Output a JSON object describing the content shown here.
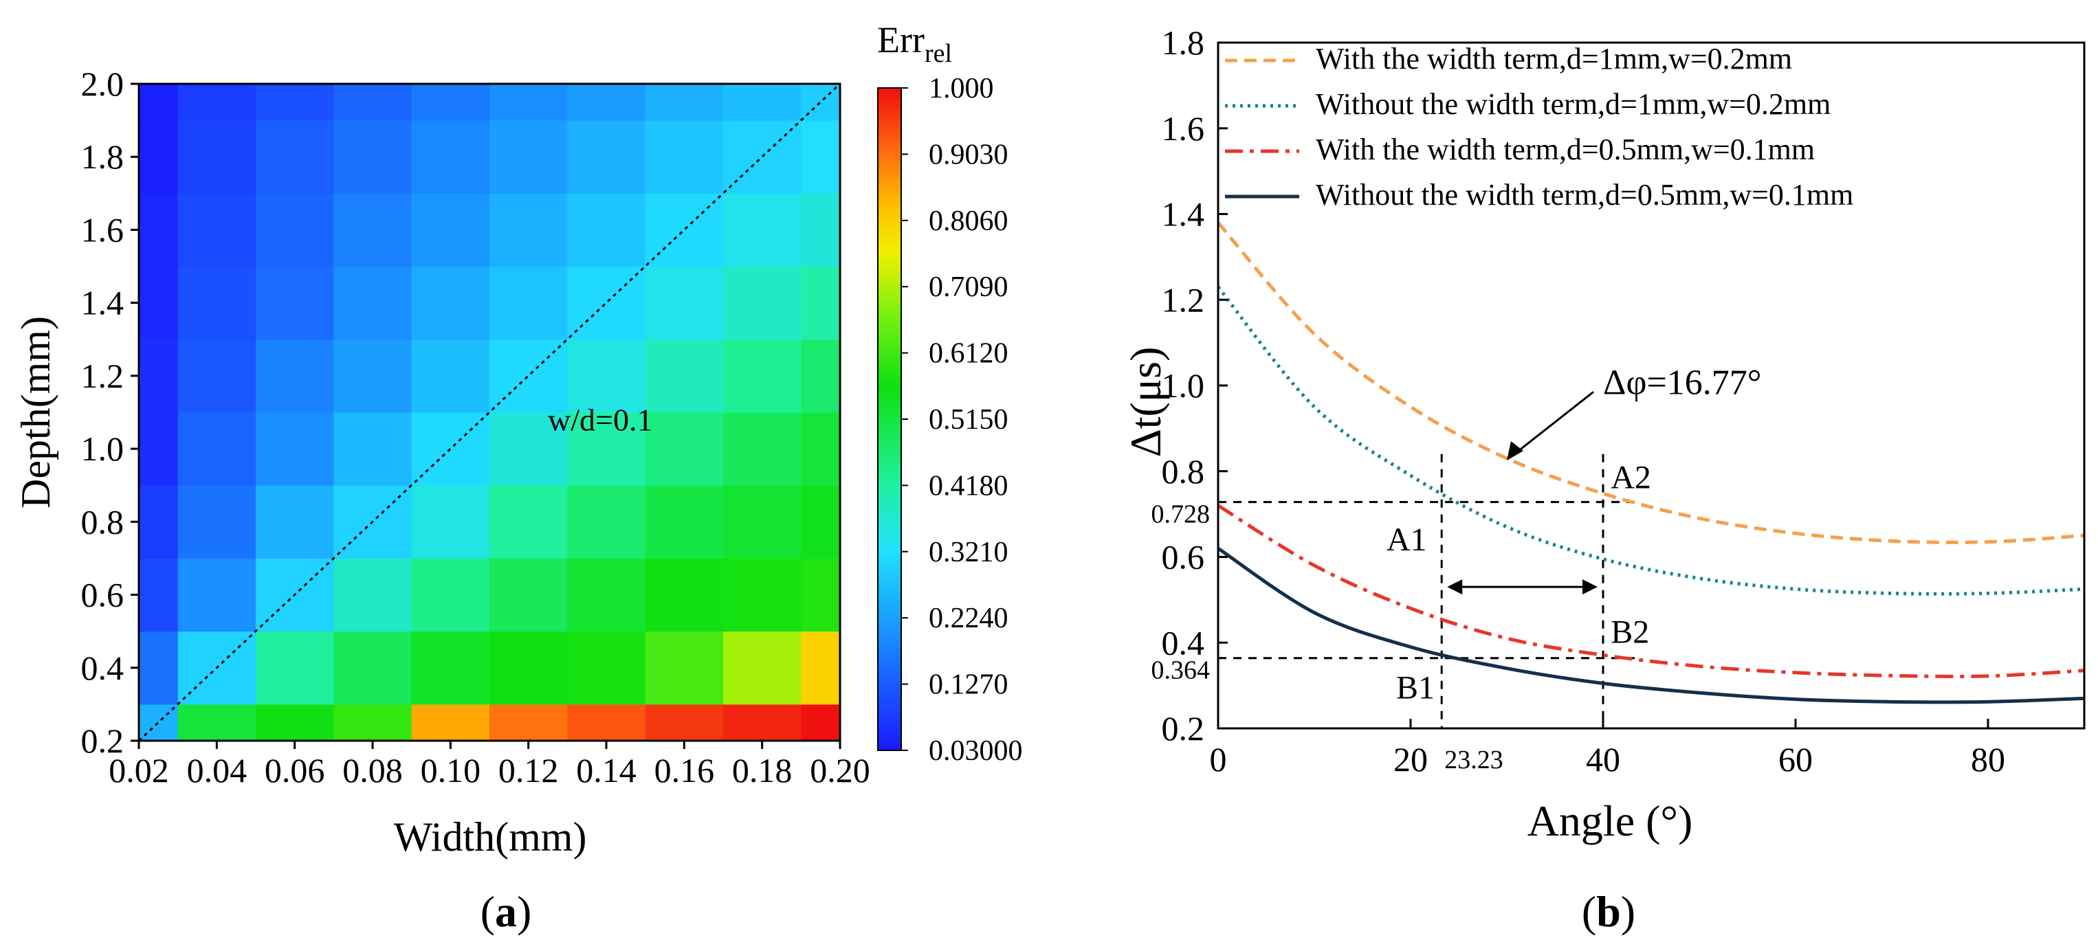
{
  "chart_data": [
    {
      "panel_label": "(a)",
      "panel_label_letter": "a",
      "type": "heatmap",
      "title": "",
      "xlabel": "Width(mm)",
      "ylabel": "Depth(mm)",
      "x": [
        0.02,
        0.04,
        0.06,
        0.08,
        0.1,
        0.12,
        0.14,
        0.16,
        0.18,
        0.2
      ],
      "y": [
        0.2,
        0.4,
        0.6,
        0.8,
        1.0,
        1.2,
        1.4,
        1.6,
        1.8,
        2.0
      ],
      "x_tick_labels": [
        "0.02",
        "0.04",
        "0.06",
        "0.08",
        "0.10",
        "0.12",
        "0.14",
        "0.16",
        "0.18",
        "0.20"
      ],
      "y_tick_labels": [
        "0.2",
        "0.4",
        "0.6",
        "0.8",
        "1.0",
        "1.2",
        "1.4",
        "1.6",
        "1.8",
        "2.0"
      ],
      "xlim": [
        0.02,
        0.2
      ],
      "ylim": [
        0.2,
        2.0
      ],
      "values": [
        [
          0.25,
          0.52,
          0.56,
          0.6,
          0.85,
          0.9,
          0.93,
          0.96,
          0.98,
          1.0
        ],
        [
          0.16,
          0.3,
          0.42,
          0.49,
          0.54,
          0.56,
          0.57,
          0.62,
          0.7,
          0.8
        ],
        [
          0.1,
          0.2,
          0.3,
          0.38,
          0.44,
          0.49,
          0.53,
          0.56,
          0.57,
          0.58
        ],
        [
          0.08,
          0.16,
          0.25,
          0.3,
          0.35,
          0.42,
          0.47,
          0.51,
          0.53,
          0.55
        ],
        [
          0.06,
          0.14,
          0.2,
          0.26,
          0.31,
          0.36,
          0.41,
          0.45,
          0.49,
          0.52
        ],
        [
          0.06,
          0.12,
          0.18,
          0.22,
          0.27,
          0.31,
          0.35,
          0.39,
          0.43,
          0.47
        ],
        [
          0.05,
          0.11,
          0.15,
          0.2,
          0.24,
          0.28,
          0.31,
          0.34,
          0.38,
          0.41
        ],
        [
          0.05,
          0.1,
          0.14,
          0.18,
          0.21,
          0.25,
          0.28,
          0.31,
          0.34,
          0.36
        ],
        [
          0.04,
          0.09,
          0.13,
          0.16,
          0.19,
          0.22,
          0.25,
          0.28,
          0.3,
          0.32
        ],
        [
          0.04,
          0.08,
          0.11,
          0.14,
          0.17,
          0.2,
          0.22,
          0.25,
          0.27,
          0.29
        ]
      ],
      "colorbar": {
        "label_main": "Err",
        "label_sub": "rel",
        "min": 0.03,
        "max": 1.0,
        "tick_values": [
          0.03,
          0.127,
          0.224,
          0.321,
          0.418,
          0.515,
          0.612,
          0.709,
          0.806,
          0.903,
          1.0
        ],
        "tick_labels": [
          "0.03000",
          "0.1270",
          "0.2240",
          "0.3210",
          "0.4180",
          "0.5150",
          "0.6120",
          "0.7090",
          "0.8060",
          "0.9030",
          "1.000"
        ]
      },
      "annotation": {
        "text": "w/d=0.1",
        "x": 0.125,
        "y": 1.05
      },
      "reference_line": {
        "from": [
          0.02,
          0.2
        ],
        "to": [
          0.2,
          2.0
        ],
        "style": "dotted"
      }
    },
    {
      "panel_label": "(b)",
      "panel_label_letter": "b",
      "type": "line",
      "title": "",
      "xlabel": "Angle (°)",
      "ylabel": "Δt(μs)",
      "xlim": [
        0,
        90
      ],
      "ylim": [
        0.2,
        1.8
      ],
      "x_ticks": [
        0,
        20,
        40,
        60,
        80
      ],
      "x_tick_labels": [
        "0",
        "20",
        "40",
        "60",
        "80"
      ],
      "y_ticks": [
        0.2,
        0.4,
        0.6,
        0.8,
        1.0,
        1.2,
        1.4,
        1.6,
        1.8
      ],
      "y_tick_labels": [
        "0.2",
        "0.4",
        "0.6",
        "0.8",
        "1.0",
        "1.2",
        "1.4",
        "1.6",
        "1.8"
      ],
      "legend_position": "top",
      "series": [
        {
          "name": "With the width term,d=1mm,w=0.2mm",
          "color": "#f5a04e",
          "dash": "dashed",
          "x": [
            0,
            10,
            20,
            30,
            40,
            50,
            60,
            70,
            80,
            90
          ],
          "y": [
            1.38,
            1.12,
            0.95,
            0.83,
            0.748,
            0.69,
            0.655,
            0.637,
            0.635,
            0.65
          ]
        },
        {
          "name": "Without the width term,d=1mm,w=0.2mm",
          "color": "#18848c",
          "dash": "dotted",
          "x": [
            0,
            10,
            20,
            30,
            40,
            50,
            60,
            70,
            80,
            90
          ],
          "y": [
            1.23,
            0.95,
            0.79,
            0.67,
            0.595,
            0.55,
            0.525,
            0.515,
            0.515,
            0.525
          ]
        },
        {
          "name": "With the width term,d=0.5mm,w=0.1mm",
          "color": "#e8352a",
          "dash": "dashdot",
          "x": [
            0,
            10,
            20,
            30,
            40,
            50,
            60,
            70,
            80,
            90
          ],
          "y": [
            0.72,
            0.58,
            0.48,
            0.41,
            0.371,
            0.345,
            0.33,
            0.323,
            0.322,
            0.335
          ]
        },
        {
          "name": "Without the width term,d=0.5mm,w=0.1mm",
          "color": "#13304a",
          "dash": "solid",
          "x": [
            0,
            10,
            20,
            30,
            40,
            50,
            60,
            70,
            80,
            90
          ],
          "y": [
            0.62,
            0.47,
            0.39,
            0.34,
            0.305,
            0.283,
            0.268,
            0.262,
            0.262,
            0.27
          ]
        }
      ],
      "annotations": {
        "delta_phi": "Δφ=16.77°",
        "a1": "A1",
        "a2": "A2",
        "b1": "B1",
        "b2": "B2",
        "y_mark_upper": "0.728",
        "y_mark_lower": "0.364",
        "x_mark": "23.23",
        "y_mark_upper_value": 0.728,
        "y_mark_lower_value": 0.364,
        "x_mark_value": 23.23,
        "x_right_value": 40
      }
    }
  ]
}
